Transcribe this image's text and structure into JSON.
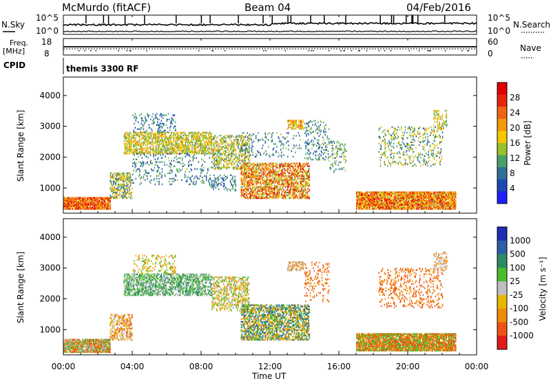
{
  "header": {
    "site": "McMurdo (fitACF)",
    "beam": "Beam 04",
    "date": "04/Feb/2016"
  },
  "status_panels": {
    "nsky_label": "N.Sky",
    "nsearch_label": "N.Search",
    "noise_ticks": [
      "10^5",
      "10^0"
    ],
    "freq_label_1": "Freq.",
    "freq_label_2": "[MHz]",
    "freq_ticks": [
      "18",
      "8"
    ],
    "nave_label": "Nave",
    "nave_ticks": [
      "60",
      "0"
    ],
    "cpid_label": "CPID",
    "cpid_value": "themis 3300 RF"
  },
  "colors": {
    "power": [
      "#1e1eff",
      "#1c48b4",
      "#2f6f97",
      "#4aa06a",
      "#9dc12c",
      "#f5c800",
      "#f39a0a",
      "#ee6414",
      "#e8230c",
      "#e00000"
    ],
    "velocity": [
      "#1c2fb5",
      "#2f5fa6",
      "#2d8a63",
      "#4bbd2c",
      "#bfbfbf",
      "#e8b800",
      "#f08b0a",
      "#ee5312",
      "#e21a1a"
    ]
  },
  "chart_data": [
    {
      "type": "heatmap",
      "name": "power",
      "ylabel": "Slant Range [km]",
      "y_ticks": [
        1000,
        2000,
        3000,
        4000
      ],
      "ylim": [
        180,
        4600
      ],
      "colorbar_label": "Power [dB]",
      "colorbar_ticks": [
        4,
        8,
        12,
        16,
        20,
        24,
        28
      ],
      "colorbar_range": [
        0,
        32
      ],
      "bands": [
        {
          "t0": 0.0,
          "t1": 2.7,
          "r0": 300,
          "r1": 700,
          "density": 0.85,
          "v0": 18,
          "v1": 30
        },
        {
          "t0": 2.7,
          "t1": 4.0,
          "r0": 650,
          "r1": 1500,
          "density": 0.45,
          "v0": 6,
          "v1": 22
        },
        {
          "t0": 3.5,
          "t1": 8.6,
          "r0": 2100,
          "r1": 2800,
          "density": 0.55,
          "v0": 10,
          "v1": 22
        },
        {
          "t0": 4.0,
          "t1": 8.5,
          "r0": 1100,
          "r1": 2100,
          "density": 0.12,
          "v0": 4,
          "v1": 14
        },
        {
          "t0": 4.0,
          "t1": 6.5,
          "r0": 2800,
          "r1": 3400,
          "density": 0.2,
          "v0": 4,
          "v1": 12
        },
        {
          "t0": 8.6,
          "t1": 10.8,
          "r0": 1600,
          "r1": 2700,
          "density": 0.4,
          "v0": 8,
          "v1": 22
        },
        {
          "t0": 8.5,
          "t1": 10.0,
          "r0": 900,
          "r1": 1400,
          "density": 0.2,
          "v0": 4,
          "v1": 14
        },
        {
          "t0": 10.3,
          "t1": 14.3,
          "r0": 650,
          "r1": 1800,
          "density": 0.55,
          "v0": 12,
          "v1": 30
        },
        {
          "t0": 10.3,
          "t1": 13.8,
          "r0": 2000,
          "r1": 2800,
          "density": 0.12,
          "v0": 4,
          "v1": 14
        },
        {
          "t0": 13.0,
          "t1": 13.9,
          "r0": 2900,
          "r1": 3200,
          "density": 0.55,
          "v0": 14,
          "v1": 24
        },
        {
          "t0": 14.0,
          "t1": 15.4,
          "r0": 1900,
          "r1": 3200,
          "density": 0.15,
          "v0": 4,
          "v1": 14
        },
        {
          "t0": 15.4,
          "t1": 16.4,
          "r0": 1500,
          "r1": 2500,
          "density": 0.15,
          "v0": 6,
          "v1": 18
        },
        {
          "t0": 17.0,
          "t1": 22.8,
          "r0": 300,
          "r1": 850,
          "density": 0.82,
          "v0": 14,
          "v1": 30
        },
        {
          "t0": 18.3,
          "t1": 22.0,
          "r0": 1700,
          "r1": 3000,
          "density": 0.18,
          "v0": 6,
          "v1": 20
        },
        {
          "t0": 21.5,
          "t1": 22.3,
          "r0": 2900,
          "r1": 3500,
          "density": 0.3,
          "v0": 10,
          "v1": 22
        }
      ]
    },
    {
      "type": "heatmap",
      "name": "velocity",
      "ylabel": "Slant Range [km]",
      "y_ticks": [
        1000,
        2000,
        3000,
        4000
      ],
      "ylim": [
        180,
        4600
      ],
      "colorbar_label": "Velocity [m s⁻¹]",
      "colorbar_ticks": [
        "1000",
        "500",
        "100",
        "25",
        "-25",
        "-100",
        "-500",
        "-1000"
      ],
      "bands": [
        {
          "t0": 0.0,
          "t1": 2.7,
          "r0": 250,
          "r1": 700,
          "density": 0.85,
          "c": [
            3,
            4,
            6,
            7
          ]
        },
        {
          "t0": 2.7,
          "t1": 4.0,
          "r0": 650,
          "r1": 1500,
          "density": 0.45,
          "c": [
            4,
            5,
            6,
            7
          ]
        },
        {
          "t0": 3.5,
          "t1": 8.6,
          "r0": 2100,
          "r1": 2800,
          "density": 0.55,
          "c": [
            2,
            3,
            4
          ]
        },
        {
          "t0": 4.0,
          "t1": 6.5,
          "r0": 2800,
          "r1": 3400,
          "density": 0.2,
          "c": [
            3,
            5,
            6
          ]
        },
        {
          "t0": 8.6,
          "t1": 10.8,
          "r0": 1600,
          "r1": 2700,
          "density": 0.4,
          "c": [
            3,
            4,
            5,
            6
          ]
        },
        {
          "t0": 10.3,
          "t1": 14.3,
          "r0": 650,
          "r1": 1800,
          "density": 0.55,
          "c": [
            1,
            2,
            3,
            5,
            6
          ]
        },
        {
          "t0": 13.0,
          "t1": 13.9,
          "r0": 2900,
          "r1": 3200,
          "density": 0.55,
          "c": [
            4,
            6
          ]
        },
        {
          "t0": 14.0,
          "t1": 15.4,
          "r0": 1900,
          "r1": 3200,
          "density": 0.15,
          "c": [
            6,
            7
          ]
        },
        {
          "t0": 17.0,
          "t1": 22.8,
          "r0": 300,
          "r1": 850,
          "density": 0.82,
          "c": [
            3,
            6,
            7
          ]
        },
        {
          "t0": 18.3,
          "t1": 22.0,
          "r0": 1700,
          "r1": 3000,
          "density": 0.18,
          "c": [
            6,
            7
          ]
        },
        {
          "t0": 21.5,
          "t1": 22.3,
          "r0": 2900,
          "r1": 3500,
          "density": 0.3,
          "c": [
            4,
            6
          ]
        }
      ]
    }
  ],
  "time_axis": {
    "ticks": [
      "00:00",
      "04:00",
      "08:00",
      "12:00",
      "16:00",
      "20:00",
      "00:00"
    ],
    "label": "Time UT"
  }
}
